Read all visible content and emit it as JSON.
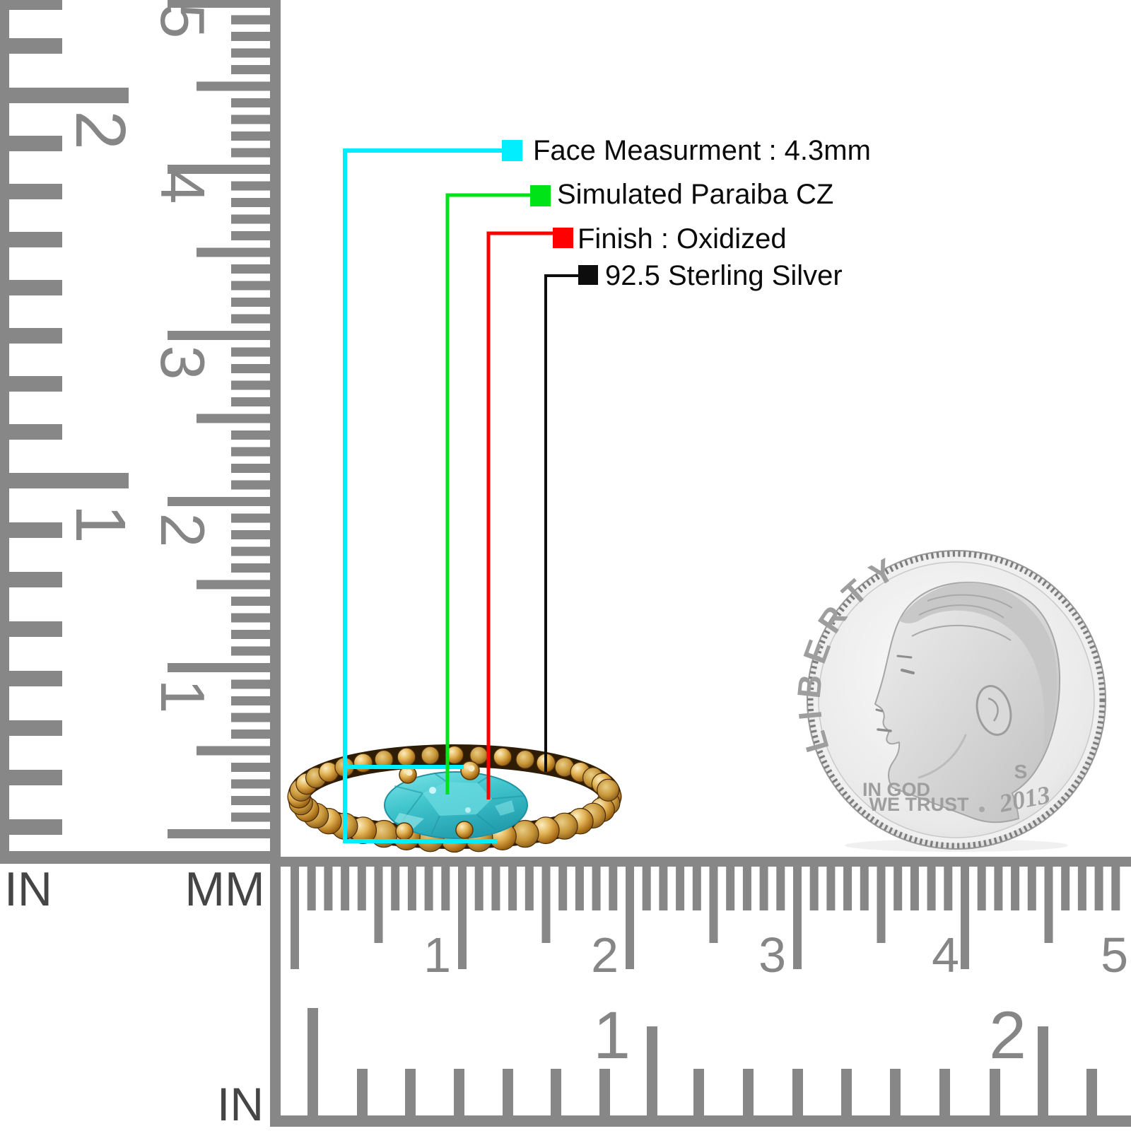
{
  "callouts": {
    "items": [
      {
        "name": "face-measurement",
        "label": "Face Measurment : 4.3mm",
        "color": "#00eeff"
      },
      {
        "name": "stone-type",
        "label": "Simulated Paraiba CZ",
        "color": "#00e316"
      },
      {
        "name": "finish",
        "label": "Finish : Oxidized",
        "color": "#fe0000"
      },
      {
        "name": "metal",
        "label": "92.5 Sterling Silver",
        "color": "#0d0d0d"
      }
    ]
  },
  "rulers": {
    "tick_color": "#878787",
    "number_color": "#868686",
    "label_color": "#454545",
    "left": {
      "unit_label_inch": "IN",
      "unit_label_mm": "MM",
      "inch_numbers": [
        "2",
        "1"
      ],
      "cm_numbers": [
        "5",
        "4",
        "3",
        "2",
        "1"
      ]
    },
    "bottom": {
      "unit_label_inch": "IN",
      "cm_numbers": [
        "1",
        "2",
        "3",
        "4",
        "5"
      ],
      "inch_numbers": [
        "1",
        "2"
      ]
    }
  },
  "coin": {
    "legend": "LIBERTY",
    "motto_line1": "IN GOD",
    "motto_line2": "WE TRUST",
    "mint_mark": "S",
    "year": "2013",
    "text_color": "#9e9e9e",
    "body_color": "#e9e9e9"
  },
  "ring": {
    "gold_base": "#c8963a",
    "gold_light": "#f8eab5",
    "gold_dark": "#6b3f09",
    "groove_color": "#2f1c04",
    "stone_base": "#3fc4cc",
    "stone_light": "#8feaec",
    "stone_dark": "#1f9aa8"
  }
}
